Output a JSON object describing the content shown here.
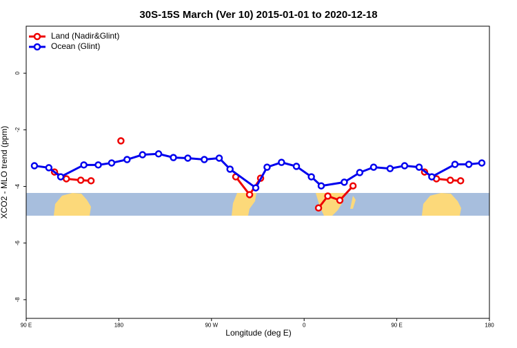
{
  "chart_data": {
    "type": "line",
    "title": "30S-15S March (Ver 10)   2015-01-01 to 2020-12-18",
    "x_label": "Longitude (deg E)",
    "y_label": "XCO2 - MLO trend (ppm)",
    "xlim": [
      90,
      540
    ],
    "ylim": [
      -8.66,
      1.66
    ],
    "xticks": [
      {
        "value": 90,
        "label": "90 E"
      },
      180,
      {
        "value": 270,
        "label": "90 W"
      },
      {
        "value": 360,
        "label": "0"
      },
      {
        "value": 450,
        "label": "90 E"
      },
      {
        "value": 540,
        "label": "180"
      }
    ],
    "yticks": [
      0,
      -2,
      -4,
      -6,
      -8
    ],
    "legend": "top-left",
    "series": [
      {
        "name": "Land (Nadir&Glint)",
        "color": "#ee0000",
        "x": [
          117.5,
          129,
          143,
          153,
          null,
          182,
          null,
          293.6,
          307,
          317.7,
          null,
          374,
          383,
          394.7,
          407.5,
          null,
          477,
          488.5,
          502,
          512
        ],
        "values": [
          -3.49,
          -3.73,
          -3.78,
          -3.8,
          null,
          -2.39,
          null,
          -3.66,
          -4.29,
          -3.71,
          null,
          -4.76,
          -4.34,
          -4.49,
          -3.98,
          null,
          -3.49,
          -3.73,
          -3.78,
          -3.8
        ]
      },
      {
        "name": "Ocean (Glint)",
        "color": "#0000ee",
        "x": [
          98,
          112,
          123.5,
          146,
          160,
          173,
          188,
          203,
          218.6,
          233,
          247,
          263,
          277.5,
          288,
          313,
          324,
          338,
          352.5,
          367,
          376.6,
          399,
          414,
          427.5,
          443.5,
          457.6,
          471.7,
          484,
          506.5,
          520,
          532.6
        ],
        "values": [
          -3.27,
          -3.34,
          -3.66,
          -3.24,
          -3.24,
          -3.17,
          -3.05,
          -2.88,
          -2.85,
          -2.98,
          -3.0,
          -3.05,
          -3.0,
          -3.39,
          -4.05,
          -3.32,
          -3.15,
          -3.29,
          -3.66,
          -3.98,
          -3.85,
          -3.51,
          -3.32,
          -3.37,
          -3.27,
          -3.32,
          -3.66,
          -3.22,
          -3.22,
          -3.17
        ]
      }
    ]
  }
}
